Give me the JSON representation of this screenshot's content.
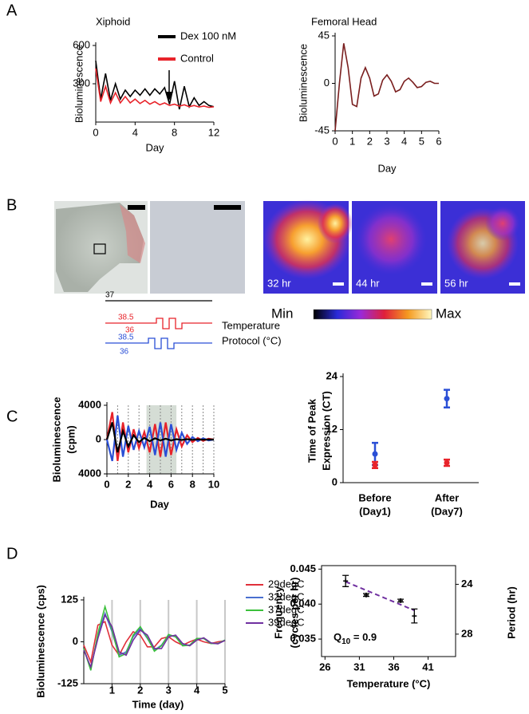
{
  "panels": [
    "A",
    "B",
    "C",
    "D"
  ],
  "panel_b": {
    "times": [
      "32 hr",
      "44 hr",
      "56 hr"
    ],
    "scale": [
      "Min",
      "Max"
    ]
  },
  "protocol": {
    "lines": [
      "37",
      "38.5",
      "36",
      "38.5",
      "36"
    ],
    "label": [
      "Temperature",
      "Protocol (°C)"
    ]
  },
  "chart_data": [
    {
      "type": "line",
      "title": "Xiphoid",
      "x_label": "Day",
      "y_label": "Bioluminescence",
      "x": [
        0,
        0.5,
        1,
        1.5,
        2,
        2.5,
        3,
        3.5,
        4,
        4.5,
        5,
        5.5,
        6,
        6.5,
        7,
        7.5,
        8,
        8.5,
        9,
        9.5,
        10,
        10.5,
        11,
        11.5,
        12
      ],
      "series": [
        {
          "name": "Dex 100 nM",
          "color": "#000000",
          "values": [
            480,
            180,
            380,
            170,
            300,
            180,
            250,
            200,
            250,
            210,
            260,
            210,
            260,
            220,
            270,
            140,
            320,
            100,
            280,
            120,
            190,
            130,
            160,
            130,
            120
          ]
        },
        {
          "name": "Control",
          "color": "#e8232a",
          "values": [
            420,
            160,
            280,
            150,
            230,
            150,
            200,
            150,
            180,
            145,
            170,
            140,
            160,
            135,
            150,
            130,
            140,
            125,
            135,
            120,
            130,
            118,
            125,
            115,
            120
          ]
        }
      ],
      "xlim": [
        0,
        12
      ],
      "xticks": [
        0,
        4,
        8,
        12
      ],
      "ylim": [
        0,
        600
      ],
      "yticks": [
        300,
        600
      ]
    },
    {
      "type": "line",
      "title": "Femoral Head",
      "x_label": "Day",
      "y_label": "Bioluminescence",
      "x": [
        0,
        0.25,
        0.5,
        0.75,
        1,
        1.25,
        1.5,
        1.75,
        2,
        2.25,
        2.5,
        2.75,
        3,
        3.25,
        3.5,
        3.75,
        4,
        4.25,
        4.5,
        4.75,
        5,
        5.25,
        5.5,
        5.75,
        6
      ],
      "series": [
        {
          "color": "#7a1f1f",
          "values": [
            -45,
            0,
            38,
            15,
            -20,
            -22,
            5,
            15,
            5,
            -12,
            -10,
            3,
            8,
            2,
            -8,
            -6,
            2,
            5,
            1,
            -4,
            -3,
            1,
            2,
            0,
            0
          ]
        }
      ],
      "xlim": [
        0,
        6
      ],
      "xticks": [
        0,
        1,
        2,
        3,
        4,
        5,
        6
      ],
      "ylim": [
        -45,
        45
      ],
      "yticks": [
        -45,
        0,
        45
      ]
    },
    {
      "type": "line",
      "x_label": "Day",
      "y_label": [
        "Bioluminescence",
        "(cpm)"
      ],
      "x": [
        0,
        0.5,
        1,
        1.5,
        2,
        2.5,
        3,
        3.5,
        4,
        4.5,
        5,
        5.5,
        6,
        6.5,
        7,
        7.5,
        8,
        8.5,
        9,
        9.5,
        10
      ],
      "series": [
        {
          "color": "#e8232a",
          "values": [
            0,
            3200,
            -2500,
            2000,
            -1500,
            1200,
            -1000,
            900,
            -1500,
            1800,
            -2000,
            2000,
            -1800,
            1200,
            -800,
            500,
            -300,
            200,
            -150,
            100,
            0
          ]
        },
        {
          "color": "#2a4fd6",
          "values": [
            0,
            -2500,
            2800,
            -2000,
            1600,
            -1200,
            1000,
            -900,
            1500,
            -1800,
            2000,
            -2000,
            1800,
            -1200,
            800,
            -500,
            300,
            -200,
            150,
            -100,
            0
          ]
        },
        {
          "color": "#000000",
          "values": [
            0,
            2000,
            -1500,
            1000,
            -800,
            500,
            -300,
            200,
            -200,
            150,
            -100,
            100,
            -100,
            50,
            -50,
            50,
            -30,
            30,
            -20,
            10,
            0
          ]
        }
      ],
      "highlight": [
        3.7,
        6.5
      ],
      "xlim": [
        0,
        10
      ],
      "xticks": [
        0,
        2,
        4,
        6,
        8,
        10
      ],
      "ylim": [
        -4000,
        4000
      ],
      "yticks": [
        {
          "value": -4000,
          "label": "4000"
        },
        0,
        4000
      ]
    },
    {
      "type": "scatter",
      "y_label": [
        "Time of Peak",
        "Expression (CT)"
      ],
      "categories": [
        [
          "Before",
          "(Day1)"
        ],
        [
          "After",
          "(Day7)"
        ]
      ],
      "series": [
        {
          "color": "#2a4fd6",
          "values": [
            6.5,
            19
          ],
          "errors": [
            2.5,
            2
          ]
        },
        {
          "color": "#e8232a",
          "values": [
            4,
            4.5
          ],
          "errors": [
            0.7,
            0.7
          ]
        }
      ],
      "ylim": [
        0,
        24
      ],
      "yticks": [
        0,
        12,
        24
      ]
    },
    {
      "type": "line",
      "x_label": "Time (day)",
      "y_label": "Bioluminescence (cps)",
      "grid": true,
      "x": [
        0,
        0.25,
        0.5,
        0.75,
        1,
        1.25,
        1.5,
        1.75,
        2,
        2.25,
        2.5,
        2.75,
        3,
        3.25,
        3.5,
        3.75,
        4,
        4.25,
        4.5,
        4.75,
        5
      ],
      "series": [
        {
          "name": "29degC",
          "color": "#e0303a",
          "values": [
            -10,
            -60,
            50,
            60,
            -10,
            -40,
            0,
            30,
            20,
            -15,
            -15,
            10,
            15,
            0,
            -10,
            0,
            8,
            0,
            -5,
            0,
            3
          ]
        },
        {
          "name": "32degC",
          "color": "#4a6fd0",
          "values": [
            -20,
            -80,
            20,
            85,
            30,
            -40,
            -30,
            15,
            40,
            10,
            -25,
            -10,
            20,
            15,
            -10,
            -10,
            10,
            10,
            -5,
            -5,
            5
          ]
        },
        {
          "name": "37degC",
          "color": "#3cc03c",
          "values": [
            -20,
            -85,
            25,
            105,
            35,
            -45,
            -35,
            20,
            45,
            12,
            -28,
            -12,
            22,
            15,
            -12,
            -10,
            10,
            10,
            -5,
            -5,
            5
          ]
        },
        {
          "name": "39degC",
          "color": "#7030a0",
          "values": [
            -25,
            -75,
            10,
            80,
            45,
            -30,
            -40,
            5,
            35,
            20,
            -20,
            -20,
            15,
            20,
            -5,
            -12,
            5,
            12,
            -3,
            -6,
            4
          ]
        }
      ],
      "xlim": [
        0,
        5
      ],
      "xticks": [
        1,
        2,
        3,
        4,
        5
      ],
      "ylim": [
        -125,
        125
      ],
      "yticks": [
        -125,
        0,
        125
      ]
    },
    {
      "type": "scatter",
      "x_label": "Temperature (°C)",
      "y_label": [
        "Frequency",
        "(cycles per hr)"
      ],
      "y2_label": "Period (hr)",
      "annotation": [
        "Q",
        "10",
        " = 0.9"
      ],
      "x": [
        29,
        32,
        37,
        39
      ],
      "series": [
        {
          "color": "#000000",
          "values": [
            0.0433,
            0.0413,
            0.0405,
            0.0383
          ],
          "errors": [
            0.0008,
            0.0002,
            0.0002,
            0.001
          ]
        }
      ],
      "fit": {
        "x": [
          29,
          39
        ],
        "values": [
          0.0432,
          0.0391
        ],
        "color": "#7030a0"
      },
      "xlim": [
        25.5,
        45
      ],
      "xticks": [
        26,
        31,
        36,
        41
      ],
      "ylim": [
        0.0325,
        0.0455
      ],
      "yticks": [
        0.035,
        {
          "value": 0.04,
          "label": "0.040"
        },
        0.045
      ],
      "y2lim": [
        29.8,
        22.5
      ],
      "y2ticks": [
        24,
        28
      ]
    }
  ]
}
